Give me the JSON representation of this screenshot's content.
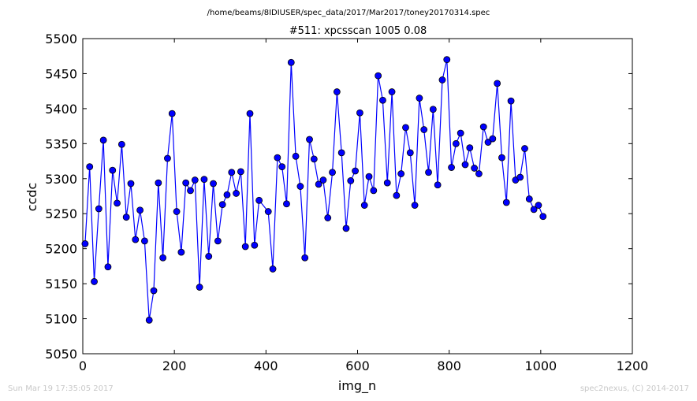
{
  "footer": {
    "timestamp": "Sun Mar 19 17:35:05 2017",
    "credit": "spec2nexus, (C) 2014-2017"
  },
  "chart_data": {
    "type": "line",
    "title": "/home/beams/8IDIUSER/spec_data/2017/Mar2017/toney20170314.spec",
    "subtitle": "#511: xpcsscan 1005 0.08",
    "xlabel": "img_n",
    "ylabel": "ccdc",
    "xlim": [
      0,
      1200
    ],
    "ylim": [
      5050,
      5500
    ],
    "xticks": [
      "0",
      "200",
      "400",
      "600",
      "800",
      "1000",
      "1200"
    ],
    "yticks": [
      "5050",
      "5100",
      "5150",
      "5200",
      "5250",
      "5300",
      "5350",
      "5400",
      "5450",
      "5500"
    ],
    "grid": false,
    "line_color": "#0000ff",
    "marker": "circle",
    "x": [
      5,
      15,
      25,
      35,
      45,
      55,
      65,
      75,
      85,
      95,
      105,
      115,
      125,
      135,
      145,
      155,
      165,
      175,
      185,
      195,
      205,
      215,
      225,
      235,
      245,
      255,
      265,
      275,
      285,
      295,
      305,
      315,
      325,
      335,
      345,
      355,
      365,
      375,
      385,
      405,
      415,
      425,
      435,
      445,
      455,
      465,
      475,
      485,
      495,
      505,
      515,
      525,
      535,
      545,
      555,
      565,
      575,
      585,
      595,
      605,
      615,
      625,
      635,
      645,
      655,
      665,
      675,
      685,
      695,
      705,
      715,
      725,
      735,
      745,
      755,
      765,
      775,
      785,
      795,
      805,
      815,
      825,
      835,
      845,
      855,
      865,
      875,
      885,
      895,
      905,
      915,
      925,
      935,
      945,
      955,
      965,
      975,
      985,
      995,
      1005
    ],
    "y": [
      5207,
      5317,
      5153,
      5257,
      5355,
      5174,
      5312,
      5265,
      5349,
      5245,
      5293,
      5213,
      5255,
      5211,
      5098,
      5140,
      5294,
      5187,
      5329,
      5393,
      5253,
      5195,
      5294,
      5283,
      5298,
      5145,
      5299,
      5189,
      5293,
      5211,
      5263,
      5277,
      5309,
      5279,
      5310,
      5203,
      5393,
      5205,
      5269,
      5253,
      5171,
      5330,
      5317,
      5264,
      5466,
      5332,
      5289,
      5187,
      5356,
      5328,
      5292,
      5298,
      5244,
      5309,
      5424,
      5337,
      5229,
      5297,
      5311,
      5394,
      5262,
      5303,
      5283,
      5447,
      5412,
      5294,
      5424,
      5276,
      5307,
      5373,
      5337,
      5262,
      5415,
      5370,
      5309,
      5399,
      5291,
      5441,
      5470,
      5316,
      5350,
      5365,
      5320,
      5344,
      5315,
      5307,
      5374,
      5352,
      5357,
      5436,
      5330,
      5266,
      5411,
      5298,
      5302,
      5343,
      5271,
      5256,
      5262,
      5246
    ]
  }
}
